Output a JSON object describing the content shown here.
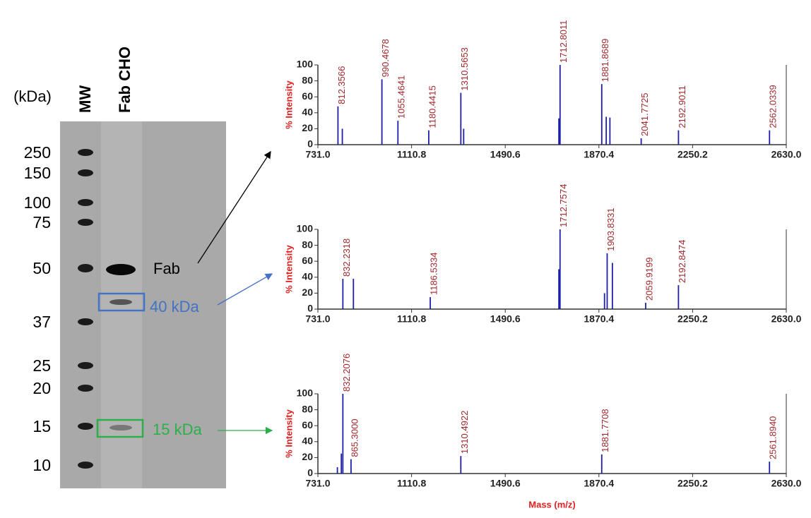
{
  "gel": {
    "unit_label": "(kDa)",
    "lanes": [
      "MW",
      "Fab CHO"
    ],
    "markers": [
      250,
      150,
      100,
      75,
      50,
      37,
      25,
      20,
      15,
      10
    ],
    "bands": [
      "Fab",
      "40 kDa",
      "15 kDa"
    ]
  },
  "chart_data": [
    {
      "type": "stem",
      "ylabel": "% Intensity",
      "color": "#1f1fa8",
      "xlim": [
        731,
        2630
      ],
      "xticks": [
        {
          "value": 731,
          "label": "731.0"
        },
        {
          "value": 1110.8,
          "label": "1110.8"
        },
        {
          "value": 1490.6,
          "label": "1490.6"
        },
        {
          "value": 1870.4,
          "label": "1870.4"
        },
        {
          "value": 2250.2,
          "label": "2250.2"
        },
        {
          "value": 2630,
          "label": "2630.0"
        }
      ],
      "ylim": [
        0,
        100
      ],
      "yticks": [
        0,
        20,
        40,
        60,
        80,
        100
      ],
      "x": [
        812.3566,
        830,
        990.4678,
        1055.4641,
        1180.4415,
        1310.5653,
        1322,
        1708,
        1712.8011,
        1881.8689,
        1900,
        1915,
        2041.7725,
        2192.9011,
        2562.0339
      ],
      "values": [
        48,
        20,
        82,
        30,
        18,
        65,
        20,
        33,
        100,
        76,
        35,
        34,
        8,
        18,
        18
      ],
      "peak_labels": [
        "812.3566",
        null,
        "990.4678",
        "1055.4641",
        "1180.4415",
        "1310.5653",
        null,
        null,
        "1712.8011",
        "1881.8689",
        null,
        null,
        "2041.7725",
        "2192.9011",
        "2562.0339"
      ]
    },
    {
      "type": "stem",
      "ylabel": "% Intensity",
      "color": "#1f1fa8",
      "xlim": [
        731,
        2630
      ],
      "xticks": [
        {
          "value": 731,
          "label": "731.0"
        },
        {
          "value": 1110.8,
          "label": "1110.8"
        },
        {
          "value": 1490.6,
          "label": "1490.6"
        },
        {
          "value": 1870.4,
          "label": "1870.4"
        },
        {
          "value": 2250.2,
          "label": "2250.2"
        },
        {
          "value": 2630,
          "label": "2630.0"
        }
      ],
      "ylim": [
        0,
        100
      ],
      "yticks": [
        0,
        20,
        40,
        60,
        80,
        100
      ],
      "x": [
        832.2318,
        875,
        1186.5334,
        1708,
        1712.7574,
        1893,
        1903.8331,
        1925,
        2059.9199,
        2192.8474
      ],
      "values": [
        38,
        38,
        15,
        50,
        100,
        20,
        70,
        58,
        8,
        30
      ],
      "peak_labels": [
        "832.2318",
        null,
        "1186.5334",
        null,
        "1712.7574",
        null,
        "1903.8331",
        null,
        "2059.9199",
        "2192.8474"
      ]
    },
    {
      "type": "stem",
      "ylabel": "% Intensity",
      "xlabel": "Mass (m/z)",
      "color": "#1f1fa8",
      "xlim": [
        731,
        2630
      ],
      "xticks": [
        {
          "value": 731,
          "label": "731.0"
        },
        {
          "value": 1110.8,
          "label": "1110.8"
        },
        {
          "value": 1490.6,
          "label": "1490.6"
        },
        {
          "value": 1870.4,
          "label": "1870.4"
        },
        {
          "value": 2250.2,
          "label": "2250.2"
        },
        {
          "value": 2630,
          "label": "2630.0"
        }
      ],
      "ylim": [
        0,
        100
      ],
      "yticks": [
        0,
        20,
        40,
        60,
        80,
        100
      ],
      "x": [
        810,
        826,
        832.2076,
        865.3,
        1310.4922,
        1881.7708,
        2561.894
      ],
      "values": [
        8,
        25,
        100,
        18,
        22,
        24,
        15
      ],
      "peak_labels": [
        null,
        null,
        "832.2076",
        "865.3000",
        "1310.4922",
        "1881.7708",
        "2561.8940"
      ]
    }
  ]
}
